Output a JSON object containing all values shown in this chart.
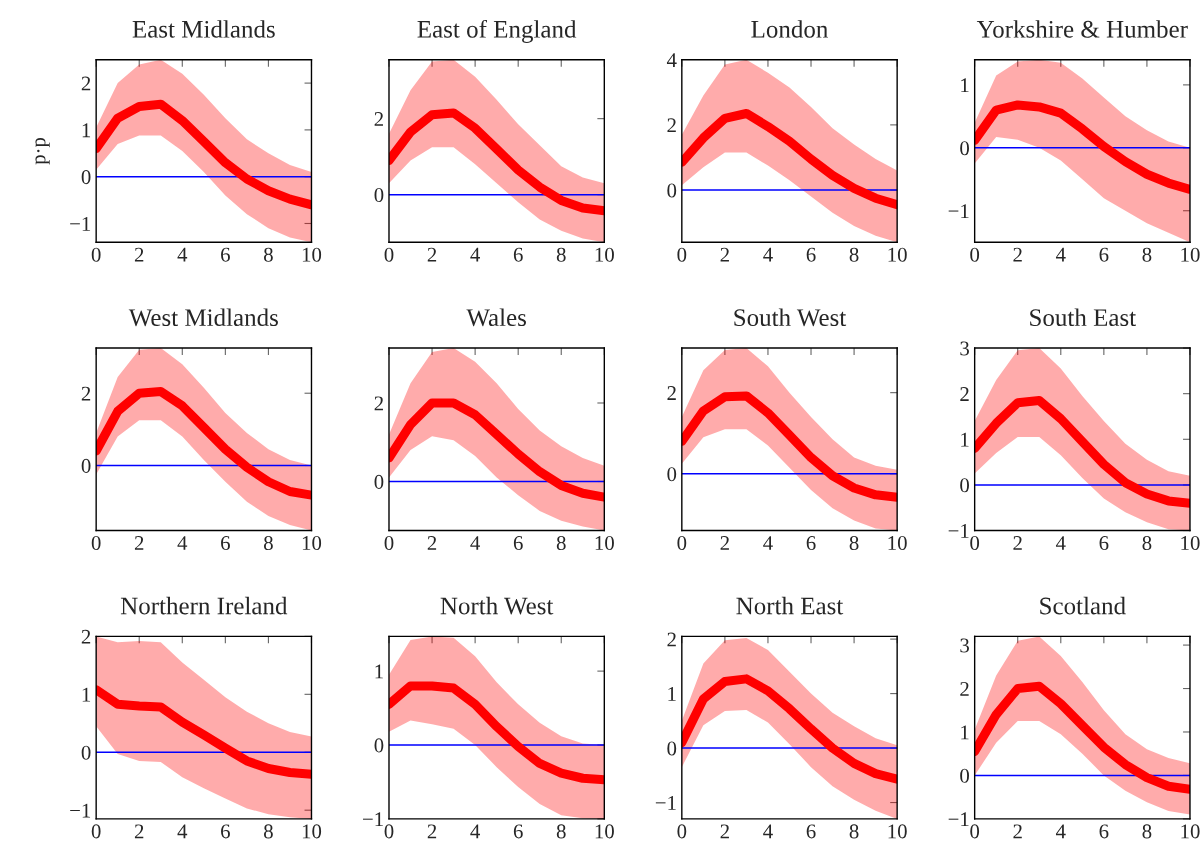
{
  "chart_data": [
    {
      "type": "line",
      "title": "East Midlands",
      "ylabel": "p·p",
      "x": [
        0,
        1,
        2,
        3,
        4,
        5,
        6,
        7,
        8,
        9,
        10
      ],
      "xlim": [
        0,
        10
      ],
      "xticks": [
        0,
        2,
        4,
        6,
        8,
        10
      ],
      "ylim": [
        -1.4,
        2.5
      ],
      "yticks": [
        -1,
        0,
        1,
        2
      ],
      "grid": false,
      "ref_lines": [
        {
          "axis": "y",
          "value": 0,
          "color": "#0000ff"
        }
      ],
      "series": [
        {
          "color": "#ff0000",
          "values": [
            0.6,
            1.25,
            1.5,
            1.55,
            1.2,
            0.75,
            0.3,
            -0.05,
            -0.3,
            -0.48,
            -0.6
          ],
          "lower": [
            0.15,
            0.7,
            0.88,
            0.88,
            0.55,
            0.1,
            -0.4,
            -0.8,
            -1.1,
            -1.3,
            -1.4
          ],
          "upper": [
            1.05,
            2.0,
            2.4,
            2.5,
            2.2,
            1.75,
            1.25,
            0.8,
            0.5,
            0.25,
            0.1
          ]
        }
      ]
    },
    {
      "type": "line",
      "title": "East of England",
      "x": [
        0,
        1,
        2,
        3,
        4,
        5,
        6,
        7,
        8,
        9,
        10
      ],
      "xlim": [
        0,
        10
      ],
      "xticks": [
        0,
        2,
        4,
        6,
        8,
        10
      ],
      "ylim": [
        -1.25,
        3.55
      ],
      "yticks": [
        0,
        2
      ],
      "grid": false,
      "ref_lines": [
        {
          "axis": "y",
          "value": 0,
          "color": "#0000ff"
        }
      ],
      "series": [
        {
          "color": "#ff0000",
          "values": [
            0.9,
            1.65,
            2.1,
            2.15,
            1.75,
            1.2,
            0.65,
            0.2,
            -0.15,
            -0.35,
            -0.42
          ],
          "lower": [
            0.3,
            0.9,
            1.25,
            1.25,
            0.8,
            0.3,
            -0.2,
            -0.65,
            -0.95,
            -1.15,
            -1.25
          ],
          "upper": [
            1.6,
            2.75,
            3.5,
            3.55,
            3.1,
            2.5,
            1.85,
            1.3,
            0.75,
            0.45,
            0.3
          ]
        }
      ]
    },
    {
      "type": "line",
      "title": "London",
      "x": [
        0,
        1,
        2,
        3,
        4,
        5,
        6,
        7,
        8,
        9,
        10
      ],
      "xlim": [
        0,
        10
      ],
      "xticks": [
        0,
        2,
        4,
        6,
        8,
        10
      ],
      "ylim": [
        -1.6,
        4
      ],
      "yticks": [
        0,
        2,
        4
      ],
      "grid": false,
      "ref_lines": [
        {
          "axis": "y",
          "value": 0,
          "color": "#0000ff"
        }
      ],
      "series": [
        {
          "color": "#ff0000",
          "values": [
            0.85,
            1.6,
            2.2,
            2.35,
            1.95,
            1.5,
            0.95,
            0.45,
            0.05,
            -0.25,
            -0.45
          ],
          "lower": [
            0.15,
            0.7,
            1.15,
            1.15,
            0.75,
            0.3,
            -0.2,
            -0.7,
            -1.1,
            -1.4,
            -1.6
          ],
          "upper": [
            1.7,
            2.9,
            3.85,
            4.0,
            3.6,
            3.15,
            2.55,
            1.9,
            1.4,
            0.95,
            0.6
          ]
        }
      ]
    },
    {
      "type": "line",
      "title": "Yorkshire & Humber",
      "x": [
        0,
        1,
        2,
        3,
        4,
        5,
        6,
        7,
        8,
        9,
        10
      ],
      "xlim": [
        0,
        10
      ],
      "xticks": [
        0,
        2,
        4,
        6,
        8,
        10
      ],
      "ylim": [
        -1.5,
        1.4
      ],
      "yticks": [
        -1,
        0,
        1
      ],
      "grid": false,
      "ref_lines": [
        {
          "axis": "y",
          "value": 0,
          "color": "#0000ff"
        }
      ],
      "series": [
        {
          "color": "#ff0000",
          "values": [
            0.12,
            0.6,
            0.68,
            0.65,
            0.55,
            0.3,
            0.02,
            -0.22,
            -0.42,
            -0.56,
            -0.66
          ],
          "lower": [
            -0.25,
            0.17,
            0.13,
            0,
            -0.2,
            -0.5,
            -0.8,
            -1.0,
            -1.2,
            -1.35,
            -1.5
          ],
          "upper": [
            0.4,
            1.15,
            1.37,
            1.4,
            1.35,
            1.1,
            0.8,
            0.5,
            0.28,
            0.1,
            0.0
          ]
        }
      ]
    },
    {
      "type": "line",
      "title": "West Midlands",
      "x": [
        0,
        1,
        2,
        3,
        4,
        5,
        6,
        7,
        8,
        9,
        10
      ],
      "xlim": [
        0,
        10
      ],
      "xticks": [
        0,
        2,
        4,
        6,
        8,
        10
      ],
      "ylim": [
        -1.8,
        3.25
      ],
      "yticks": [
        0,
        2
      ],
      "grid": false,
      "ref_lines": [
        {
          "axis": "y",
          "value": 0,
          "color": "#0000ff"
        }
      ],
      "series": [
        {
          "color": "#ff0000",
          "values": [
            0.4,
            1.5,
            2.0,
            2.05,
            1.65,
            1.05,
            0.45,
            -0.05,
            -0.45,
            -0.72,
            -0.82
          ],
          "lower": [
            -0.25,
            0.8,
            1.25,
            1.25,
            0.8,
            0.15,
            -0.45,
            -1.0,
            -1.4,
            -1.65,
            -1.8
          ],
          "upper": [
            0.9,
            2.45,
            3.2,
            3.25,
            2.8,
            2.15,
            1.45,
            0.9,
            0.45,
            0.15,
            0.0
          ]
        }
      ]
    },
    {
      "type": "line",
      "title": "Wales",
      "x": [
        0,
        1,
        2,
        3,
        4,
        5,
        6,
        7,
        8,
        9,
        10
      ],
      "xlim": [
        0,
        10
      ],
      "xticks": [
        0,
        2,
        4,
        6,
        8,
        10
      ],
      "ylim": [
        -1.25,
        3.4
      ],
      "yticks": [
        0,
        2
      ],
      "grid": false,
      "ref_lines": [
        {
          "axis": "y",
          "value": 0,
          "color": "#0000ff"
        }
      ],
      "series": [
        {
          "color": "#ff0000",
          "values": [
            0.6,
            1.45,
            2.0,
            2.0,
            1.7,
            1.2,
            0.7,
            0.25,
            -0.1,
            -0.3,
            -0.4
          ],
          "lower": [
            0.1,
            0.8,
            1.15,
            1.05,
            0.65,
            0.1,
            -0.35,
            -0.75,
            -1.0,
            -1.15,
            -1.25
          ],
          "upper": [
            1.2,
            2.5,
            3.3,
            3.4,
            3.05,
            2.5,
            1.85,
            1.3,
            0.9,
            0.6,
            0.4
          ]
        }
      ]
    },
    {
      "type": "line",
      "title": "South West",
      "x": [
        0,
        1,
        2,
        3,
        4,
        5,
        6,
        7,
        8,
        9,
        10
      ],
      "xlim": [
        0,
        10
      ],
      "xticks": [
        0,
        2,
        4,
        6,
        8,
        10
      ],
      "ylim": [
        -1.4,
        3.1
      ],
      "yticks": [
        0,
        2
      ],
      "grid": false,
      "ref_lines": [
        {
          "axis": "y",
          "value": 0,
          "color": "#0000ff"
        }
      ],
      "series": [
        {
          "color": "#ff0000",
          "values": [
            0.8,
            1.55,
            1.9,
            1.92,
            1.5,
            0.95,
            0.4,
            -0.05,
            -0.35,
            -0.52,
            -0.58
          ],
          "lower": [
            0.25,
            0.9,
            1.1,
            1.1,
            0.7,
            0.15,
            -0.4,
            -0.85,
            -1.15,
            -1.35,
            -1.4
          ],
          "upper": [
            1.4,
            2.55,
            3.05,
            3.1,
            2.65,
            2.0,
            1.4,
            0.85,
            0.4,
            0.2,
            0.1
          ]
        }
      ]
    },
    {
      "type": "line",
      "title": "South East",
      "x": [
        0,
        1,
        2,
        3,
        4,
        5,
        6,
        7,
        8,
        9,
        10
      ],
      "xlim": [
        0,
        10
      ],
      "xticks": [
        0,
        2,
        4,
        6,
        8,
        10
      ],
      "ylim": [
        -1,
        3
      ],
      "yticks": [
        -1,
        0,
        1,
        2,
        3
      ],
      "grid": false,
      "ref_lines": [
        {
          "axis": "y",
          "value": 0,
          "color": "#0000ff"
        }
      ],
      "series": [
        {
          "color": "#ff0000",
          "values": [
            0.8,
            1.35,
            1.8,
            1.85,
            1.45,
            0.95,
            0.45,
            0.05,
            -0.2,
            -0.35,
            -0.4
          ],
          "lower": [
            0.25,
            0.7,
            1.05,
            1.05,
            0.65,
            0.15,
            -0.3,
            -0.6,
            -0.82,
            -0.97,
            -1.0
          ],
          "upper": [
            1.4,
            2.3,
            2.95,
            3.0,
            2.55,
            1.95,
            1.4,
            0.9,
            0.55,
            0.3,
            0.2
          ]
        }
      ]
    },
    {
      "type": "line",
      "title": "Northern Ireland",
      "x": [
        0,
        1,
        2,
        3,
        4,
        5,
        6,
        7,
        8,
        9,
        10
      ],
      "xlim": [
        0,
        10
      ],
      "xticks": [
        0,
        2,
        4,
        6,
        8,
        10
      ],
      "ylim": [
        -1.15,
        2
      ],
      "yticks": [
        -1,
        0,
        1,
        2
      ],
      "grid": false,
      "ref_lines": [
        {
          "axis": "y",
          "value": 0,
          "color": "#0000ff"
        }
      ],
      "series": [
        {
          "color": "#ff0000",
          "values": [
            1.08,
            0.83,
            0.8,
            0.78,
            0.52,
            0.3,
            0.07,
            -0.15,
            -0.28,
            -0.35,
            -0.38
          ],
          "lower": [
            0.45,
            -0.03,
            -0.15,
            -0.17,
            -0.43,
            -0.62,
            -0.8,
            -0.97,
            -1.07,
            -1.12,
            -1.15
          ],
          "upper": [
            2.0,
            1.9,
            1.92,
            1.9,
            1.55,
            1.25,
            0.95,
            0.7,
            0.5,
            0.35,
            0.27
          ]
        }
      ]
    },
    {
      "type": "line",
      "title": "North West",
      "x": [
        0,
        1,
        2,
        3,
        4,
        5,
        6,
        7,
        8,
        9,
        10
      ],
      "xlim": [
        0,
        10
      ],
      "xticks": [
        0,
        2,
        4,
        6,
        8,
        10
      ],
      "ylim": [
        -1,
        1.47
      ],
      "yticks": [
        -1,
        0,
        1
      ],
      "grid": false,
      "ref_lines": [
        {
          "axis": "y",
          "value": 0,
          "color": "#0000ff"
        }
      ],
      "series": [
        {
          "color": "#ff0000",
          "values": [
            0.55,
            0.8,
            0.8,
            0.77,
            0.55,
            0.25,
            -0.02,
            -0.25,
            -0.38,
            -0.45,
            -0.47
          ],
          "lower": [
            0.18,
            0.33,
            0.28,
            0.22,
            0.0,
            -0.3,
            -0.57,
            -0.8,
            -0.95,
            -0.99,
            -1.0
          ],
          "upper": [
            0.95,
            1.42,
            1.47,
            1.45,
            1.2,
            0.85,
            0.55,
            0.3,
            0.12,
            0.02,
            0.0
          ]
        }
      ]
    },
    {
      "type": "line",
      "title": "North East",
      "x": [
        0,
        1,
        2,
        3,
        4,
        5,
        6,
        7,
        8,
        9,
        10
      ],
      "xlim": [
        0,
        10
      ],
      "xticks": [
        0,
        2,
        4,
        6,
        8,
        10
      ],
      "ylim": [
        -1.3,
        2.05
      ],
      "yticks": [
        -1,
        0,
        1,
        2
      ],
      "grid": false,
      "ref_lines": [
        {
          "axis": "y",
          "value": 0,
          "color": "#0000ff"
        }
      ],
      "series": [
        {
          "color": "#ff0000",
          "values": [
            0.1,
            0.9,
            1.22,
            1.27,
            1.05,
            0.72,
            0.35,
            0.0,
            -0.28,
            -0.47,
            -0.57
          ],
          "lower": [
            -0.35,
            0.42,
            0.68,
            0.7,
            0.47,
            0.07,
            -0.35,
            -0.7,
            -0.95,
            -1.15,
            -1.3
          ],
          "upper": [
            0.5,
            1.55,
            1.98,
            2.02,
            1.8,
            1.4,
            1.0,
            0.65,
            0.4,
            0.18,
            0.05
          ]
        }
      ]
    },
    {
      "type": "line",
      "title": "Scotland",
      "x": [
        0,
        1,
        2,
        3,
        4,
        5,
        6,
        7,
        8,
        9,
        10
      ],
      "xlim": [
        0,
        10
      ],
      "xticks": [
        0,
        2,
        4,
        6,
        8,
        10
      ],
      "ylim": [
        -1,
        3.2
      ],
      "yticks": [
        -1,
        0,
        1,
        2,
        3
      ],
      "grid": false,
      "ref_lines": [
        {
          "axis": "y",
          "value": 0,
          "color": "#0000ff"
        }
      ],
      "series": [
        {
          "color": "#ff0000",
          "values": [
            0.55,
            1.4,
            2.0,
            2.05,
            1.65,
            1.15,
            0.65,
            0.25,
            -0.05,
            -0.25,
            -0.32
          ],
          "lower": [
            0.0,
            0.75,
            1.25,
            1.25,
            0.95,
            0.5,
            0.0,
            -0.35,
            -0.62,
            -0.82,
            -0.9
          ],
          "upper": [
            1.05,
            2.3,
            3.1,
            3.2,
            2.75,
            2.15,
            1.5,
            0.95,
            0.6,
            0.4,
            0.28
          ]
        }
      ]
    }
  ]
}
